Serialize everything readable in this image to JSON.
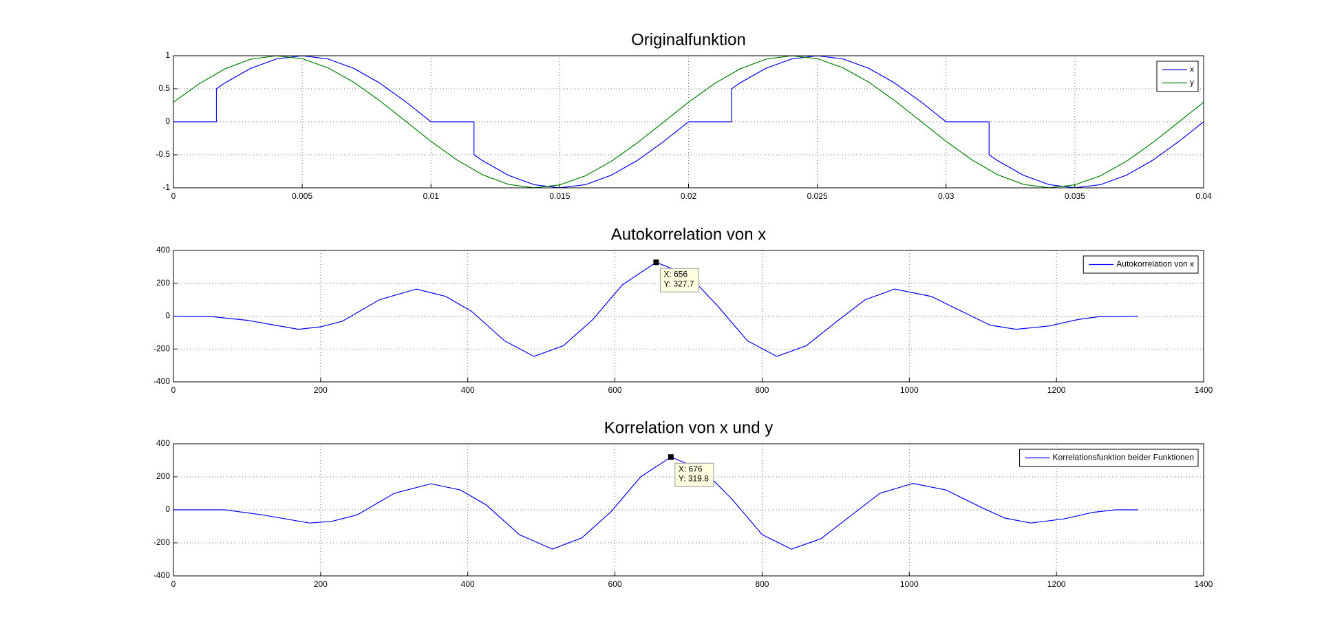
{
  "chart_data": [
    {
      "type": "line",
      "title": "Originalfunktion",
      "xlim": [
        0,
        0.04
      ],
      "ylim": [
        -1,
        1
      ],
      "xticks": [
        0,
        0.005,
        0.01,
        0.015,
        0.02,
        0.025,
        0.03,
        0.035,
        0.04
      ],
      "yticks": [
        -1,
        -0.5,
        0,
        0.5,
        1
      ],
      "grid": true,
      "legend": "upper right",
      "series": [
        {
          "name": "x",
          "color": "#0000ff",
          "x": [
            0,
            0.001,
            0.00167,
            0.00167,
            0.002,
            0.003,
            0.004,
            0.005,
            0.006,
            0.007,
            0.008,
            0.009,
            0.01,
            0.011,
            0.01167,
            0.01167,
            0.012,
            0.013,
            0.014,
            0.015,
            0.016,
            0.017,
            0.018,
            0.019,
            0.02,
            0.021,
            0.02167,
            0.02167,
            0.022,
            0.023,
            0.024,
            0.025,
            0.026,
            0.027,
            0.028,
            0.029,
            0.03,
            0.031,
            0.03167,
            0.03167,
            0.032,
            0.033,
            0.034,
            0.035,
            0.036,
            0.037,
            0.038,
            0.039,
            0.04
          ],
          "values": [
            0,
            0,
            0,
            0.5,
            0.588,
            0.809,
            0.951,
            1,
            0.951,
            0.809,
            0.588,
            0.309,
            0,
            0,
            0,
            -0.5,
            -0.588,
            -0.809,
            -0.951,
            -1,
            -0.951,
            -0.809,
            -0.588,
            -0.309,
            0,
            0,
            0,
            0.5,
            0.588,
            0.809,
            0.951,
            1,
            0.951,
            0.809,
            0.588,
            0.309,
            0,
            0,
            0,
            -0.5,
            -0.588,
            -0.809,
            -0.951,
            -1,
            -0.951,
            -0.809,
            -0.588,
            -0.309,
            0
          ]
        },
        {
          "name": "y",
          "color": "#008000",
          "x": [
            0,
            0.001,
            0.002,
            0.003,
            0.004,
            0.005,
            0.006,
            0.007,
            0.008,
            0.009,
            0.01,
            0.011,
            0.012,
            0.013,
            0.014,
            0.015,
            0.016,
            0.017,
            0.018,
            0.019,
            0.02,
            0.021,
            0.022,
            0.023,
            0.024,
            0.025,
            0.026,
            0.027,
            0.028,
            0.029,
            0.03,
            0.031,
            0.032,
            0.033,
            0.034,
            0.035,
            0.036,
            0.037,
            0.038,
            0.039,
            0.04
          ],
          "values": [
            0.296,
            0.576,
            0.801,
            0.947,
            1,
            0.955,
            0.817,
            0.599,
            0.322,
            0.014,
            -0.296,
            -0.576,
            -0.801,
            -0.947,
            -1,
            -0.955,
            -0.817,
            -0.599,
            -0.322,
            -0.014,
            0.296,
            0.576,
            0.801,
            0.947,
            1,
            0.955,
            0.817,
            0.599,
            0.322,
            0.014,
            -0.296,
            -0.576,
            -0.801,
            -0.947,
            -1,
            -0.955,
            -0.817,
            -0.599,
            -0.322,
            -0.014,
            0.296
          ]
        }
      ]
    },
    {
      "type": "line",
      "title": "Autokorrelation von x",
      "xlim": [
        0,
        1400
      ],
      "ylim": [
        -400,
        400
      ],
      "xticks": [
        0,
        200,
        400,
        600,
        800,
        1000,
        1200,
        1400
      ],
      "yticks": [
        -400,
        -200,
        0,
        200,
        400
      ],
      "grid": true,
      "legend": "upper right",
      "series": [
        {
          "name": "Autokorrelation von x",
          "color": "#0000ff",
          "x": [
            0,
            50,
            100,
            170,
            200,
            230,
            280,
            330,
            370,
            405,
            450,
            490,
            530,
            570,
            610,
            656,
            700,
            740,
            780,
            820,
            860,
            905,
            940,
            980,
            1030,
            1080,
            1110,
            1145,
            1190,
            1230,
            1260,
            1311
          ],
          "values": [
            0,
            -2,
            -25,
            -80,
            -65,
            -30,
            100,
            165,
            120,
            30,
            -150,
            -245,
            -180,
            -20,
            190,
            327.7,
            250,
            60,
            -150,
            -245,
            -180,
            -20,
            100,
            165,
            120,
            10,
            -55,
            -80,
            -60,
            -20,
            -2,
            0
          ]
        }
      ],
      "annotations": [
        {
          "x": 656,
          "y": 327.7,
          "labels": [
            "X: 656",
            "Y: 327.7"
          ]
        }
      ]
    },
    {
      "type": "line",
      "title": "Korrelation von x und y",
      "xlim": [
        0,
        1400
      ],
      "ylim": [
        -400,
        400
      ],
      "xticks": [
        0,
        200,
        400,
        600,
        800,
        1000,
        1200,
        1400
      ],
      "yticks": [
        -400,
        -200,
        0,
        200,
        400
      ],
      "grid": true,
      "legend": "upper right",
      "series": [
        {
          "name": "Korrelationsfunktion beider Funktionen",
          "color": "#0000ff",
          "x": [
            0,
            70,
            120,
            185,
            215,
            250,
            300,
            350,
            390,
            425,
            470,
            515,
            555,
            595,
            635,
            676,
            720,
            760,
            800,
            840,
            880,
            925,
            960,
            1005,
            1050,
            1100,
            1130,
            1165,
            1210,
            1250,
            1280,
            1311
          ],
          "values": [
            0,
            0,
            -30,
            -80,
            -70,
            -30,
            100,
            158,
            120,
            30,
            -150,
            -238,
            -170,
            -10,
            200,
            319.8,
            240,
            60,
            -150,
            -238,
            -175,
            -20,
            100,
            160,
            120,
            10,
            -50,
            -80,
            -55,
            -15,
            0,
            0
          ]
        }
      ],
      "annotations": [
        {
          "x": 676,
          "y": 319.8,
          "labels": [
            "X: 676",
            "Y: 319.8"
          ]
        }
      ]
    }
  ]
}
